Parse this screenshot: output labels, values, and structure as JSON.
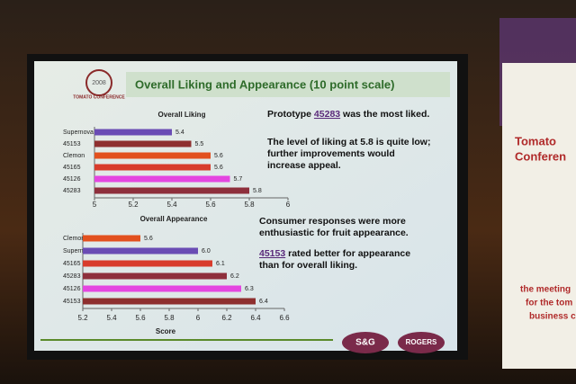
{
  "slide": {
    "title": "Overall Liking and Appearance (10 point scale)",
    "logo_year": "2008",
    "logo_name": "TOMATO CONFERENCE",
    "notes": [
      [
        [
          "Prototype ",
          "45283",
          " was the most liked."
        ]
      ],
      [
        [
          "The level of liking at 5.8 is quite low;"
        ],
        [
          "further improvements would"
        ],
        [
          "increase appeal."
        ]
      ],
      [
        [
          "Consumer responses were more"
        ],
        [
          "enthusiastic for fruit appearance."
        ]
      ],
      [
        [
          "45153",
          " rated better for appearance"
        ],
        [
          "than for overall liking."
        ]
      ]
    ],
    "sponsors": [
      "S&G",
      "ROGERS"
    ],
    "banner": [
      "Tomato",
      "Conferen",
      "the meeting",
      "for the tom",
      "business c"
    ]
  },
  "chart_data": [
    {
      "type": "hbar",
      "title": "Overall Liking",
      "categories": [
        "Supernova",
        "45153",
        "Clemon",
        "45165",
        "45126",
        "45283"
      ],
      "values": [
        5.4,
        5.5,
        5.6,
        5.6,
        5.7,
        5.8
      ],
      "colors": [
        "#6a4cb4",
        "#8e2f2f",
        "#e2501e",
        "#d83c2c",
        "#e446e0",
        "#8e2f3c"
      ],
      "xlim": [
        5,
        6
      ],
      "xticks": [
        5,
        5.2,
        5.4,
        5.6,
        5.8,
        6
      ]
    },
    {
      "type": "hbar",
      "title": "Overall Appearance",
      "x_label": "Score",
      "categories": [
        "Clemon",
        "Supernova",
        "45165",
        "45283",
        "45126",
        "45153"
      ],
      "values": [
        5.6,
        6,
        6.1,
        6.2,
        6.3,
        6.4
      ],
      "value_labels": [
        "5.6",
        "6.0",
        "6.1",
        "6.2",
        "6.3",
        "6.4"
      ],
      "colors": [
        "#e2501e",
        "#6a4cb4",
        "#d83c2c",
        "#8e2f3c",
        "#e446e0",
        "#8e2f2f"
      ],
      "xlim": [
        5.2,
        6.6
      ],
      "xticks": [
        5.2,
        5.4,
        5.6,
        5.8,
        6,
        6.2,
        6.4,
        6.6
      ]
    }
  ]
}
